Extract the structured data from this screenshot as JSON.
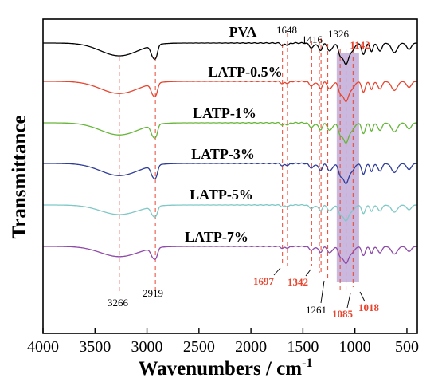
{
  "chart_data": {
    "type": "line",
    "xlabel_main": "Wavenumbers / cm",
    "xlabel_sup": "-1",
    "ylabel": "Transmittance",
    "xlim": [
      4000,
      400
    ],
    "x_ticks": [
      "4000",
      "3500",
      "3000",
      "2500",
      "2000",
      "1500",
      "1000",
      "500"
    ],
    "x_tick_values": [
      4000,
      3500,
      3000,
      2500,
      2000,
      1500,
      1000,
      500
    ],
    "series": [
      {
        "name": "PVA",
        "color": "#000000"
      },
      {
        "name": "LATP-0.5%",
        "color": "#e8452f"
      },
      {
        "name": "LATP-1%",
        "color": "#67b53a"
      },
      {
        "name": "LATP-3%",
        "color": "#2f3d9a"
      },
      {
        "name": "LATP-5%",
        "color": "#7fc8c6"
      },
      {
        "name": "LATP-7%",
        "color": "#8e4aa8"
      }
    ],
    "reference_lines": [
      3266,
      2919,
      1697,
      1648,
      1416,
      1342,
      1326,
      1261,
      1142,
      1085,
      1018
    ],
    "highlight_band": [
      1175,
      960
    ],
    "highlight_color": "#b9a0d3",
    "annotations": [
      {
        "text": "1648",
        "x": 1648,
        "color": "black"
      },
      {
        "text": "1416",
        "x": 1416,
        "color": "black"
      },
      {
        "text": "1326",
        "x": 1326,
        "color": "black"
      },
      {
        "text": "1142",
        "x": 1142,
        "color": "red"
      },
      {
        "text": "3266",
        "x": 3266,
        "color": "black"
      },
      {
        "text": "2919",
        "x": 2919,
        "color": "black"
      },
      {
        "text": "1697",
        "x": 1697,
        "color": "red"
      },
      {
        "text": "1342",
        "x": 1342,
        "color": "red"
      },
      {
        "text": "1261",
        "x": 1261,
        "color": "black"
      },
      {
        "text": "1085",
        "x": 1085,
        "color": "red"
      },
      {
        "text": "1018",
        "x": 1018,
        "color": "red"
      }
    ],
    "annotation_colors": {
      "black": "#000000",
      "red": "#e8452f"
    },
    "reference_line_color": "#e8452f"
  }
}
